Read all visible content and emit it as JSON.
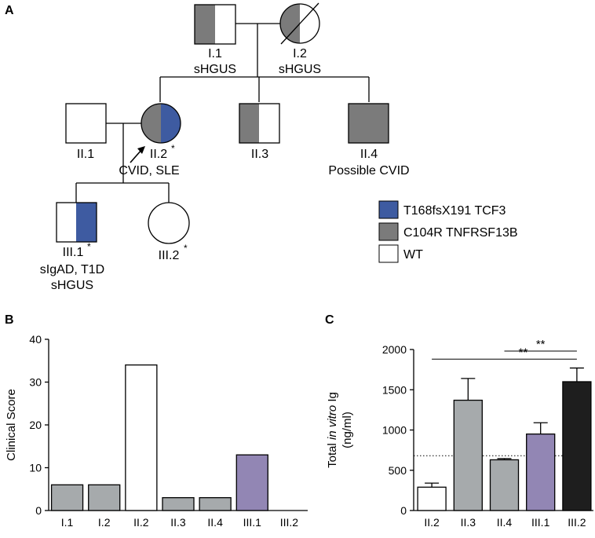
{
  "panels": {
    "a": "A",
    "b": "B",
    "c": "C"
  },
  "colors": {
    "blue": "#3e5ba1",
    "gray": "#7b7b7b",
    "white": "#ffffff",
    "purple": "#9286b4",
    "lightgray": "#a6aaac",
    "black": "#1e1e1e"
  },
  "pedigree": {
    "individuals": [
      {
        "id": "I.1",
        "captions": [
          "I.1",
          "sHGUS"
        ],
        "shape": "square",
        "fill": "left-half-gray"
      },
      {
        "id": "I.2",
        "captions": [
          "I.2",
          "sHGUS"
        ],
        "shape": "circle",
        "fill": "left-half-gray",
        "deceased": true
      },
      {
        "id": "II.1",
        "captions": [
          "II.1"
        ],
        "shape": "square",
        "fill": "white"
      },
      {
        "id": "II.2",
        "captions": [
          "II.2",
          "CVID, SLE"
        ],
        "shape": "circle",
        "fill": "gray-left-blue-right",
        "proband": true,
        "asterisk": "*"
      },
      {
        "id": "II.3",
        "captions": [
          "II.3"
        ],
        "shape": "square",
        "fill": "left-half-gray"
      },
      {
        "id": "II.4",
        "captions": [
          "II.4",
          "Possible CVID"
        ],
        "shape": "square",
        "fill": "full-gray"
      },
      {
        "id": "III.1",
        "captions": [
          "III.1",
          "sIgAD, T1D",
          "sHGUS"
        ],
        "shape": "square",
        "fill": "right-half-blue",
        "asterisk": "*"
      },
      {
        "id": "III.2",
        "captions": [
          "III.2"
        ],
        "shape": "circle",
        "fill": "white",
        "asterisk": "*"
      }
    ],
    "legend": [
      {
        "label": "T168fsX191 TCF3",
        "color": "#3e5ba1"
      },
      {
        "label": "C104R TNFRSF13B",
        "color": "#7b7b7b"
      },
      {
        "label": "WT",
        "color": "#ffffff"
      }
    ]
  },
  "chart_data": [
    {
      "type": "bar",
      "panel": "B",
      "title": "",
      "ylabel": "Clinical Score",
      "xlabel": "",
      "categories": [
        "I.1",
        "I.2",
        "II.2",
        "II.3",
        "II.4",
        "III.1",
        "III.2"
      ],
      "values": [
        6,
        6,
        34,
        3,
        3,
        13,
        0
      ],
      "colors": [
        "#a6aaac",
        "#a6aaac",
        "#ffffff",
        "#a6aaac",
        "#a6aaac",
        "#9286b4",
        "#ffffff"
      ],
      "ylim": [
        0,
        40
      ],
      "yticks": [
        0,
        10,
        20,
        30,
        40
      ]
    },
    {
      "type": "bar",
      "panel": "C",
      "title": "",
      "ylabel_parts": [
        "Total ",
        "in vitro",
        " Ig"
      ],
      "ylabel_unit": "(ng/ml)",
      "xlabel": "",
      "categories": [
        "II.2",
        "II.3",
        "II.4",
        "III.1",
        "III.2"
      ],
      "values": [
        290,
        1370,
        630,
        950,
        1600
      ],
      "errors": [
        50,
        270,
        15,
        140,
        170
      ],
      "colors": [
        "#ffffff",
        "#a6aaac",
        "#a6aaac",
        "#9286b4",
        "#1e1e1e"
      ],
      "ylim": [
        0,
        2000
      ],
      "yticks": [
        0,
        500,
        1000,
        1500,
        2000
      ],
      "reference_line": 680,
      "significance": [
        {
          "from": "II.2",
          "to": "III.2",
          "label": "**"
        },
        {
          "from": "II.4",
          "to": "III.2",
          "label": "**"
        }
      ]
    }
  ]
}
